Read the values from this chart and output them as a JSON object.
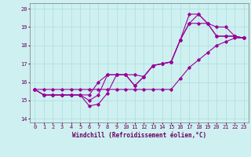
{
  "xlabel": "Windchill (Refroidissement éolien,°C)",
  "background_color": "#cff0f0",
  "grid_color": "#aadddd",
  "line_color": "#990099",
  "xlim": [
    -0.5,
    23.5
  ],
  "ylim": [
    13.8,
    20.3
  ],
  "xticks": [
    0,
    1,
    2,
    3,
    4,
    5,
    6,
    7,
    8,
    9,
    10,
    11,
    12,
    13,
    14,
    15,
    16,
    17,
    18,
    19,
    20,
    21,
    22,
    23
  ],
  "yticks": [
    14,
    15,
    16,
    17,
    18,
    19,
    20
  ],
  "series": [
    [
      15.6,
      15.3,
      15.3,
      15.3,
      15.3,
      15.3,
      14.7,
      14.8,
      15.4,
      16.4,
      16.4,
      15.8,
      16.3,
      16.9,
      17.0,
      17.1,
      18.3,
      19.2,
      19.2,
      19.2,
      19.0,
      19.0,
      18.5,
      18.4
    ],
    [
      15.6,
      15.3,
      15.3,
      15.3,
      15.3,
      15.3,
      15.3,
      16.0,
      16.4,
      16.4,
      16.4,
      16.4,
      16.3,
      16.9,
      17.0,
      17.1,
      18.3,
      19.7,
      19.7,
      19.2,
      18.5,
      18.5,
      18.5,
      18.4
    ],
    [
      15.6,
      15.3,
      15.3,
      15.3,
      15.3,
      15.3,
      15.0,
      15.3,
      16.4,
      16.4,
      16.4,
      15.8,
      16.3,
      16.9,
      17.0,
      17.1,
      18.3,
      19.2,
      19.7,
      19.2,
      18.5,
      18.5,
      18.5,
      18.4
    ],
    [
      15.6,
      15.6,
      15.6,
      15.6,
      15.6,
      15.6,
      15.6,
      15.6,
      15.6,
      15.6,
      15.6,
      15.6,
      15.6,
      15.6,
      15.6,
      15.6,
      16.2,
      16.8,
      17.2,
      17.6,
      18.0,
      18.2,
      18.4,
      18.4
    ]
  ],
  "marker": "D",
  "markersize": 1.8,
  "linewidth": 0.8,
  "tick_fontsize": 5.0,
  "label_fontsize": 5.5
}
